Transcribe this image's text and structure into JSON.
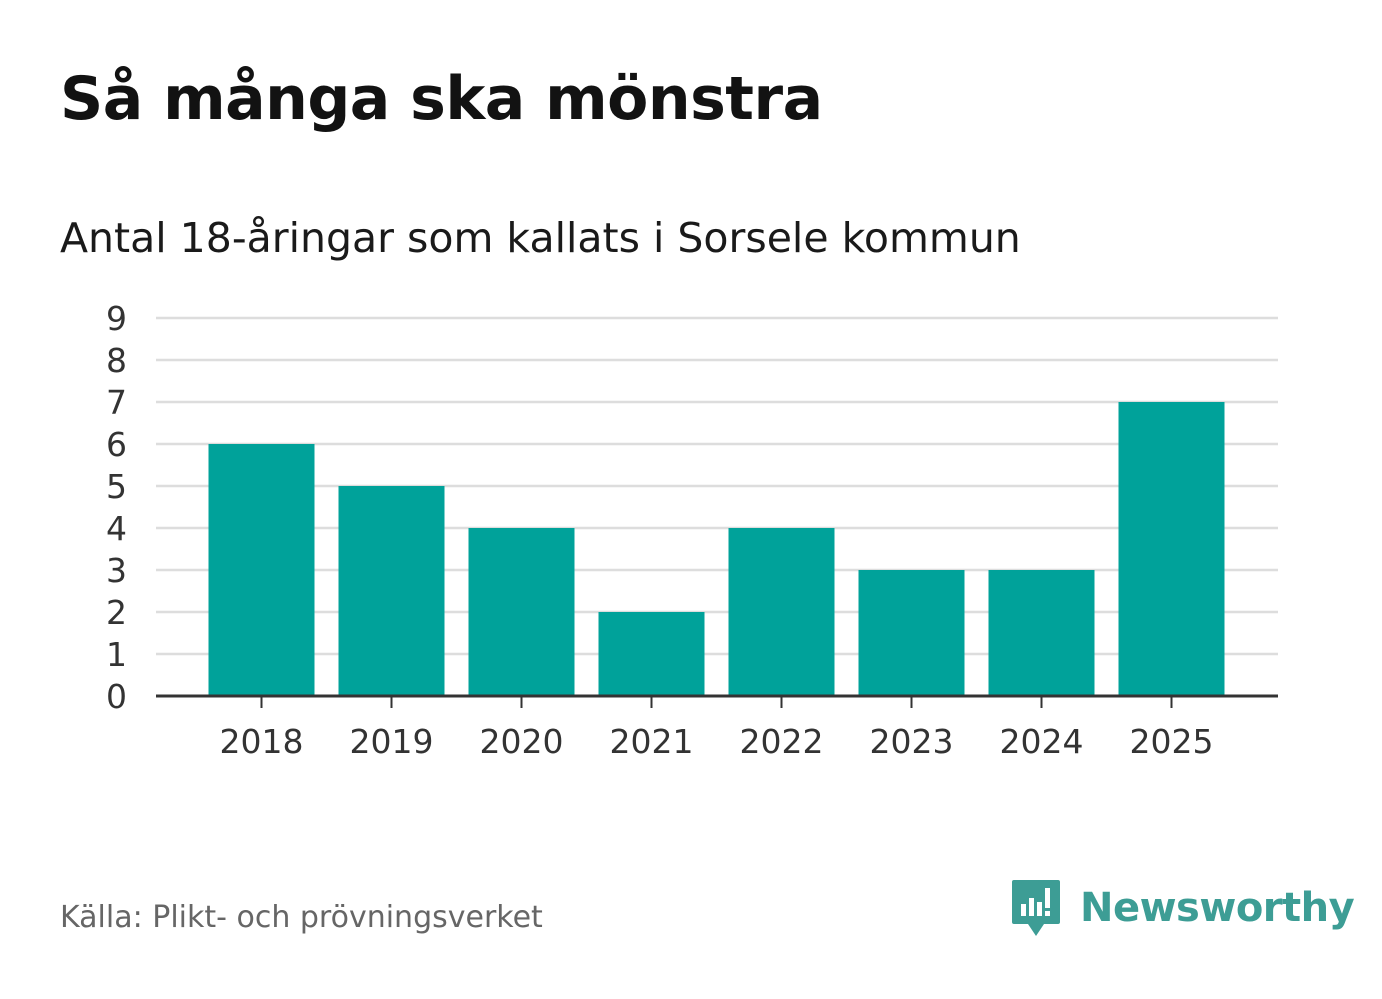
{
  "title": "Så många ska mönstra",
  "subtitle": "Antal 18-åringar som kallats i Sorsele kommun",
  "source": "Källa: Plikt- och prövningsverket",
  "brand": {
    "name": "Newsworthy",
    "icon": "newsworthy-logo-icon",
    "color": "#3d9d95"
  },
  "colors": {
    "bar": "#00a29a",
    "grid": "#dddddd",
    "axis": "#333333",
    "tick_text": "#333333"
  },
  "chart_data": {
    "type": "bar",
    "title": "Så många ska mönstra",
    "subtitle": "Antal 18-åringar som kallats i Sorsele kommun",
    "categories": [
      "2018",
      "2019",
      "2020",
      "2021",
      "2022",
      "2023",
      "2024",
      "2025"
    ],
    "values": [
      6,
      5,
      4,
      2,
      4,
      3,
      3,
      7
    ],
    "xlabel": "",
    "ylabel": "",
    "ylim": [
      0,
      9
    ],
    "yticks": [
      0,
      1,
      2,
      3,
      4,
      5,
      6,
      7,
      8,
      9
    ],
    "grid": true,
    "legend": "none"
  }
}
